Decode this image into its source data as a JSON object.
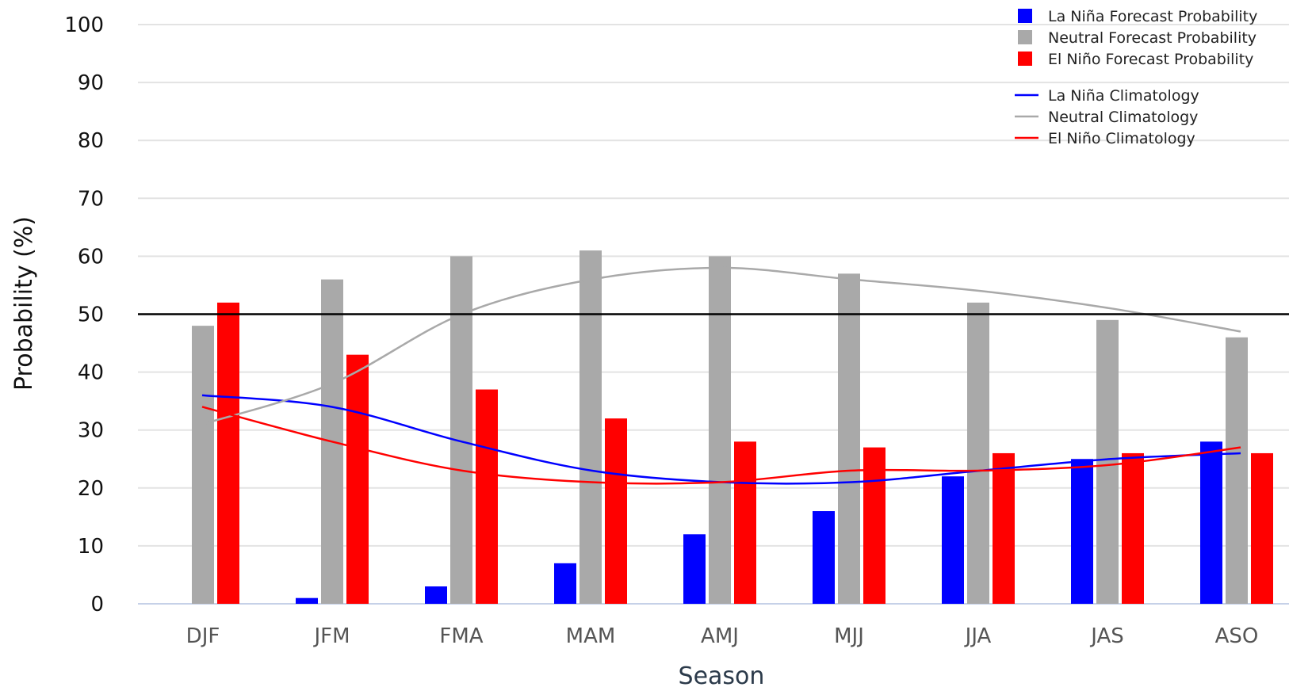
{
  "chart_data": {
    "type": "bar",
    "xlabel": "Season",
    "ylabel": "Probability (%)",
    "ylim": [
      0,
      100
    ],
    "yticks": [
      0,
      10,
      20,
      30,
      40,
      50,
      60,
      70,
      80,
      90,
      100
    ],
    "grid": true,
    "reference_line": 50,
    "legend_position": "top-right",
    "categories": [
      "DJF",
      "JFM",
      "FMA",
      "MAM",
      "AMJ",
      "MJJ",
      "JJA",
      "JAS",
      "ASO"
    ],
    "series": [
      {
        "name": "La Niña Forecast Probability",
        "kind": "bar",
        "color": "#0000ff",
        "values": [
          0,
          1,
          3,
          7,
          12,
          16,
          22,
          25,
          28
        ]
      },
      {
        "name": "Neutral Forecast Probability",
        "kind": "bar",
        "color": "#a9a9a9",
        "values": [
          48,
          56,
          60,
          61,
          60,
          57,
          52,
          49,
          46
        ]
      },
      {
        "name": "El Niño Forecast Probability",
        "kind": "bar",
        "color": "#ff0000",
        "values": [
          52,
          43,
          37,
          32,
          28,
          27,
          26,
          26,
          26
        ]
      },
      {
        "name": "La Niña Climatology",
        "kind": "line",
        "color": "#0000ff",
        "values": [
          36,
          34,
          28,
          23,
          21,
          21,
          23,
          25,
          26
        ]
      },
      {
        "name": "Neutral Climatology",
        "kind": "line",
        "color": "#a9a9a9",
        "values": [
          31,
          38,
          50,
          56,
          58,
          56,
          54,
          51,
          47
        ]
      },
      {
        "name": "El Niño Climatology",
        "kind": "line",
        "color": "#ff0000",
        "values": [
          34,
          28,
          23,
          21,
          21,
          23,
          23,
          24,
          27
        ]
      }
    ]
  }
}
